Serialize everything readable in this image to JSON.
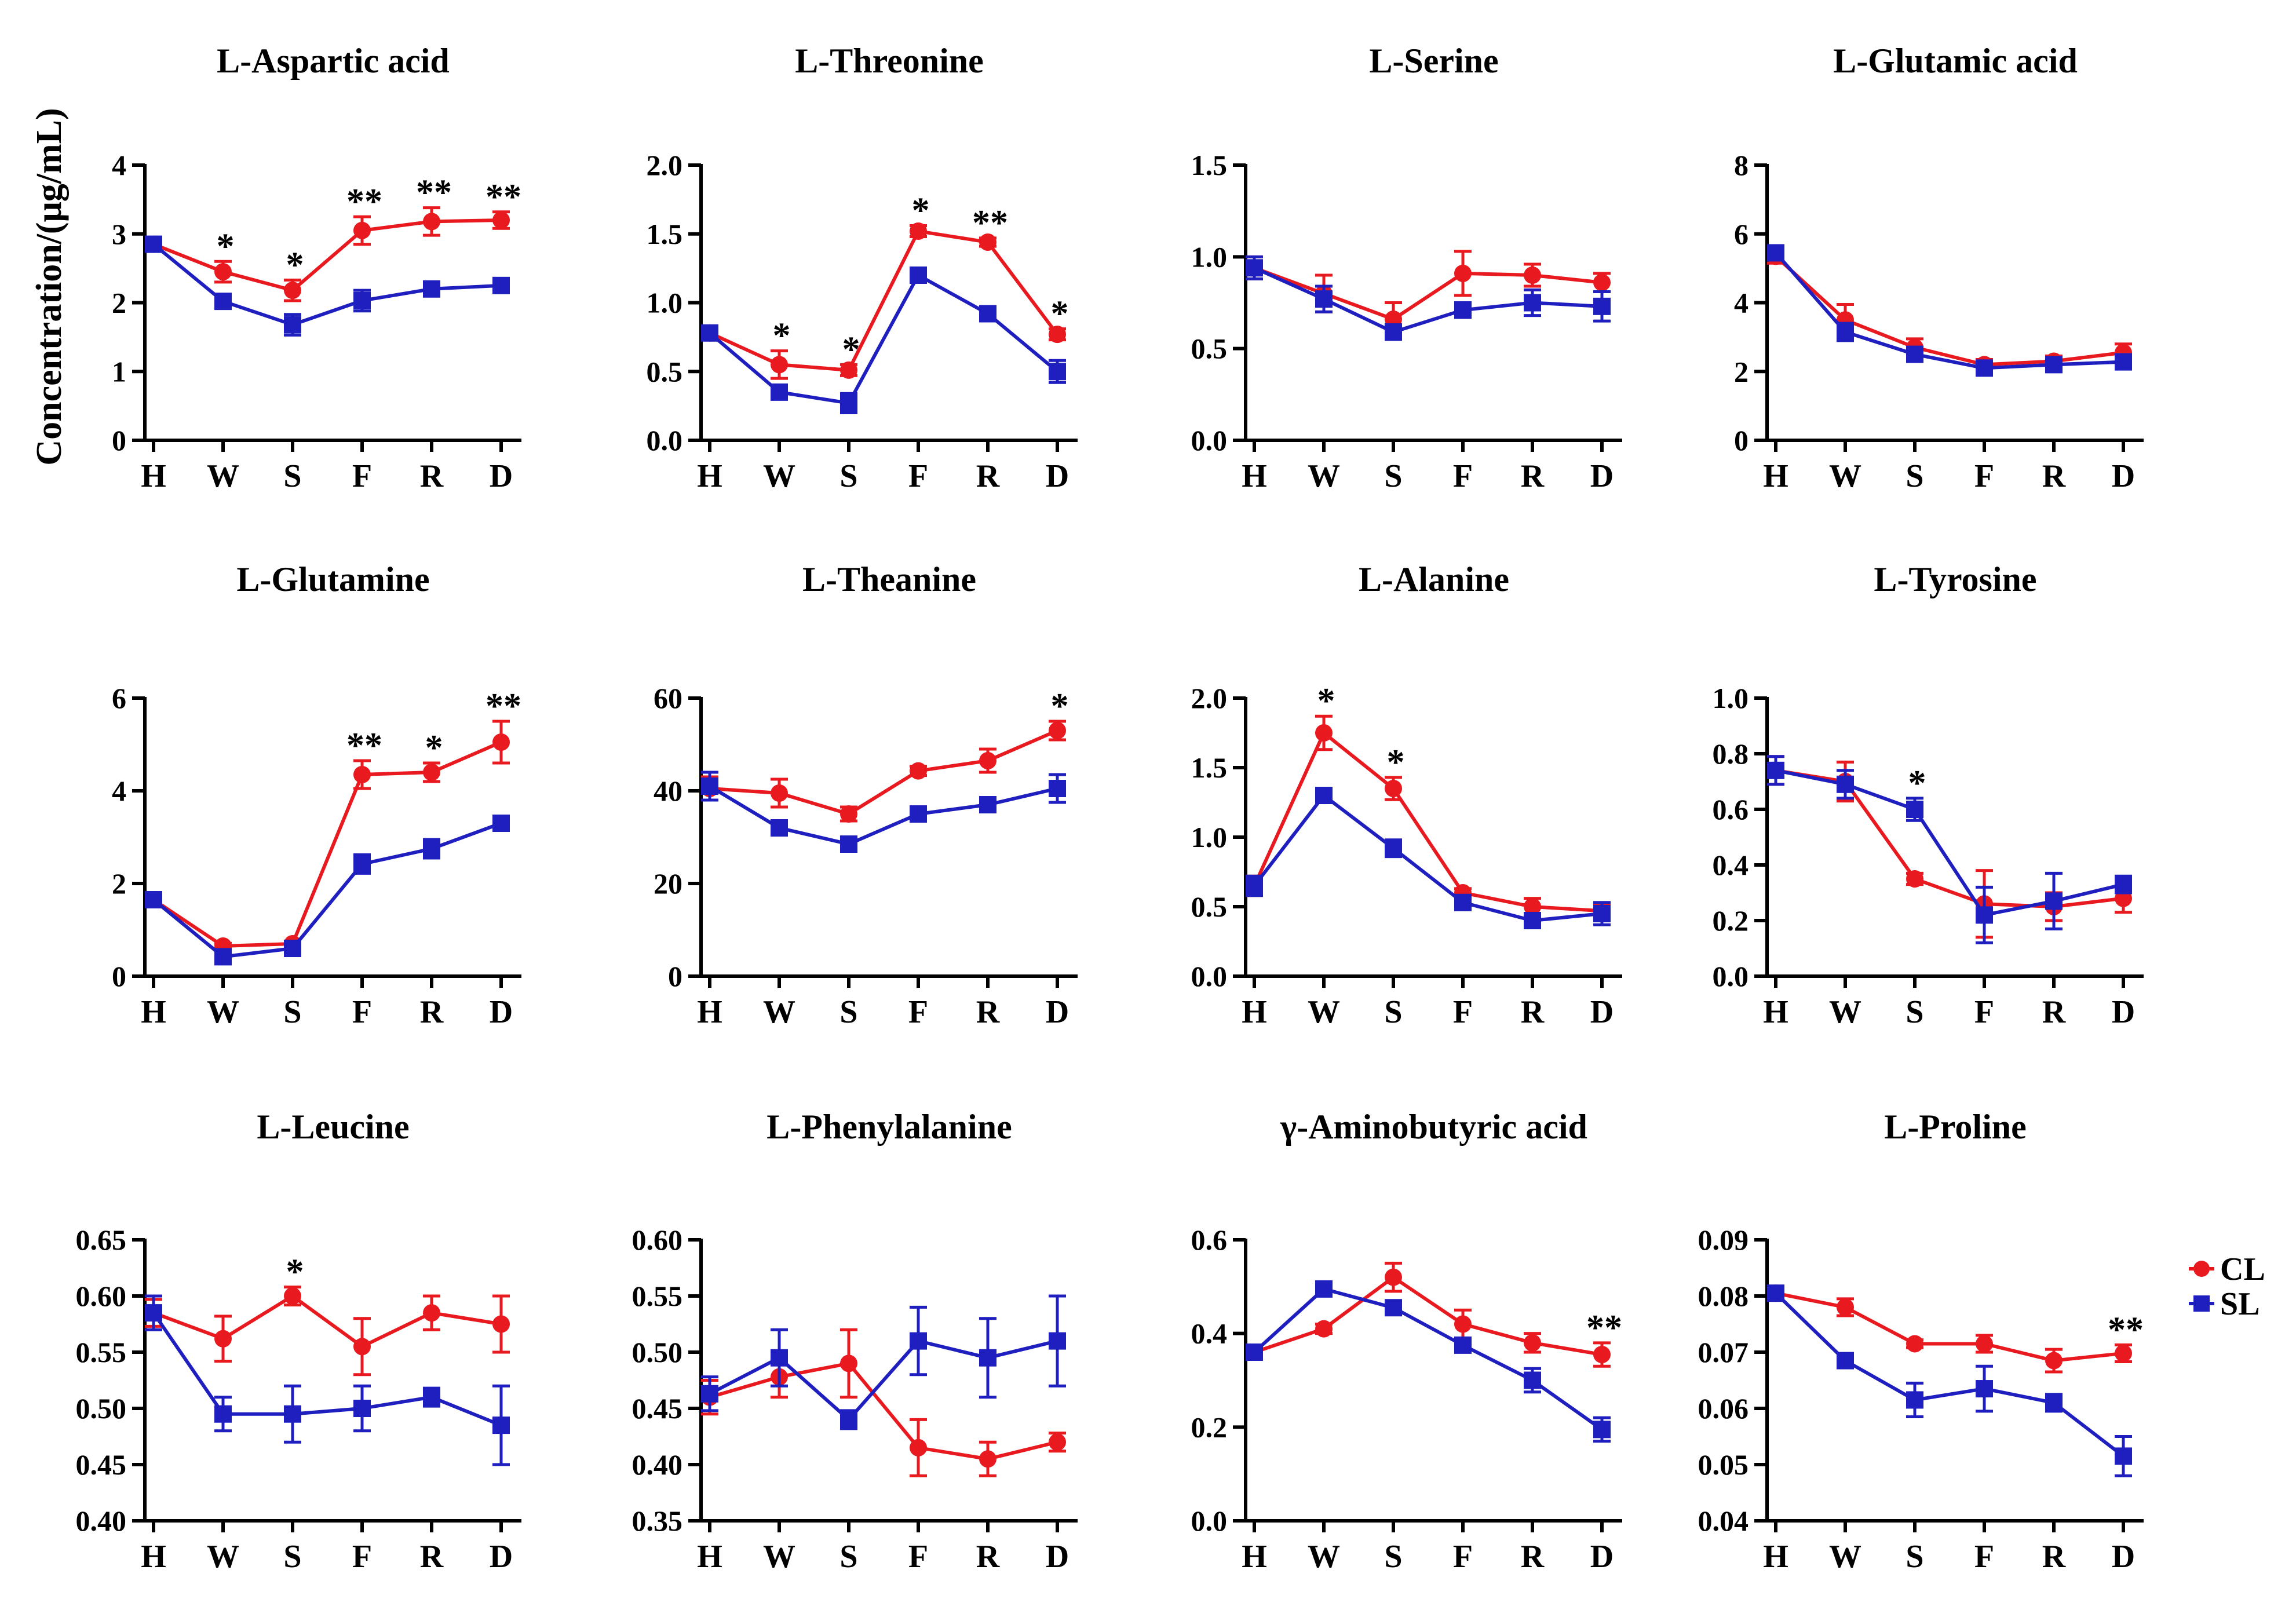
{
  "figure": {
    "ylabel": "Concentration/(μg/mL)",
    "categories": [
      "H",
      "W",
      "S",
      "F",
      "R",
      "D"
    ],
    "legend": [
      {
        "name": "CL",
        "color": "#e8191f",
        "marker": "circle"
      },
      {
        "name": "SL",
        "color": "#1f1fbf",
        "marker": "square"
      }
    ]
  },
  "chart_data": [
    {
      "type": "line",
      "title": "L-Aspartic acid",
      "ylim": [
        0,
        4
      ],
      "yticks": [
        "0",
        "1",
        "2",
        "3",
        "4"
      ],
      "series": [
        {
          "name": "CL",
          "values": [
            2.85,
            2.45,
            2.18,
            3.05,
            3.18,
            3.2
          ],
          "errors": [
            0.08,
            0.15,
            0.15,
            0.2,
            0.2,
            0.12
          ]
        },
        {
          "name": "SL",
          "values": [
            2.85,
            2.02,
            1.68,
            2.03,
            2.2,
            2.25
          ],
          "errors": [
            0.08,
            0.07,
            0.15,
            0.15,
            0.1,
            0.06
          ]
        }
      ],
      "annotations": [
        "",
        "*",
        "*",
        "**",
        "**",
        "**"
      ]
    },
    {
      "type": "line",
      "title": "L-Threonine",
      "ylim": [
        0,
        2
      ],
      "yticks": [
        "0.0",
        "0.5",
        "1.0",
        "1.5",
        "2.0"
      ],
      "series": [
        {
          "name": "CL",
          "values": [
            0.78,
            0.55,
            0.51,
            1.52,
            1.44,
            0.77
          ],
          "errors": [
            0.03,
            0.1,
            0.04,
            0.04,
            0.03,
            0.04
          ]
        },
        {
          "name": "SL",
          "values": [
            0.78,
            0.35,
            0.27,
            1.2,
            0.92,
            0.5
          ],
          "errors": [
            0.03,
            0.04,
            0.07,
            0.03,
            0.03,
            0.08
          ]
        }
      ],
      "annotations": [
        "",
        "*",
        "*",
        "*",
        "**",
        "*"
      ]
    },
    {
      "type": "line",
      "title": "L-Serine",
      "ylim": [
        0,
        1.5
      ],
      "yticks": [
        "0.0",
        "0.5",
        "1.0",
        "1.5"
      ],
      "series": [
        {
          "name": "CL",
          "values": [
            0.94,
            0.8,
            0.66,
            0.91,
            0.9,
            0.86
          ],
          "errors": [
            0.06,
            0.1,
            0.09,
            0.12,
            0.06,
            0.05
          ]
        },
        {
          "name": "SL",
          "values": [
            0.94,
            0.77,
            0.59,
            0.71,
            0.75,
            0.73
          ],
          "errors": [
            0.06,
            0.07,
            0.04,
            0.04,
            0.07,
            0.08
          ]
        }
      ],
      "annotations": [
        "",
        "",
        "",
        "",
        "",
        ""
      ]
    },
    {
      "type": "line",
      "title": "L-Glutamic acid",
      "ylim": [
        0,
        8
      ],
      "yticks": [
        "0",
        "2",
        "4",
        "6",
        "8"
      ],
      "series": [
        {
          "name": "CL",
          "values": [
            5.35,
            3.5,
            2.7,
            2.2,
            2.3,
            2.55
          ],
          "errors": [
            0.2,
            0.45,
            0.25,
            0.15,
            0.15,
            0.25
          ]
        },
        {
          "name": "SL",
          "values": [
            5.45,
            3.15,
            2.5,
            2.1,
            2.2,
            2.28
          ],
          "errors": [
            0.2,
            0.25,
            0.15,
            0.15,
            0.15,
            0.2
          ]
        }
      ],
      "annotations": [
        "",
        "",
        "",
        "",
        "",
        ""
      ]
    },
    {
      "type": "line",
      "title": "L-Glutamine",
      "ylim": [
        0,
        6
      ],
      "yticks": [
        "0",
        "2",
        "4",
        "6"
      ],
      "series": [
        {
          "name": "CL",
          "values": [
            1.65,
            0.65,
            0.7,
            4.35,
            4.4,
            5.05
          ],
          "errors": [
            0.06,
            0.06,
            0.06,
            0.3,
            0.2,
            0.45
          ]
        },
        {
          "name": "SL",
          "values": [
            1.65,
            0.42,
            0.6,
            2.42,
            2.75,
            3.3
          ],
          "errors": [
            0.06,
            0.1,
            0.1,
            0.2,
            0.2,
            0.15
          ]
        }
      ],
      "annotations": [
        "",
        "",
        "",
        "**",
        "*",
        "**"
      ]
    },
    {
      "type": "line",
      "title": "L-Theanine",
      "ylim": [
        0,
        60
      ],
      "yticks": [
        "0",
        "20",
        "40",
        "60"
      ],
      "series": [
        {
          "name": "CL",
          "values": [
            40.5,
            39.5,
            35,
            44.3,
            46.5,
            53
          ],
          "errors": [
            2.5,
            3,
            1.5,
            1,
            2.5,
            2
          ]
        },
        {
          "name": "SL",
          "values": [
            41,
            32,
            28.5,
            35,
            37,
            40.5
          ],
          "errors": [
            3,
            1.5,
            1.5,
            1.5,
            1.5,
            3
          ]
        }
      ],
      "annotations": [
        "",
        "",
        "",
        "",
        "",
        "*"
      ]
    },
    {
      "type": "line",
      "title": "L-Alanine",
      "ylim": [
        0,
        2
      ],
      "yticks": [
        "0.0",
        "0.5",
        "1.0",
        "1.5",
        "2.0"
      ],
      "series": [
        {
          "name": "CL",
          "values": [
            0.65,
            1.75,
            1.35,
            0.6,
            0.5,
            0.47
          ],
          "errors": [
            0.07,
            0.12,
            0.08,
            0.03,
            0.06,
            0.05
          ]
        },
        {
          "name": "SL",
          "values": [
            0.65,
            1.3,
            0.92,
            0.53,
            0.4,
            0.45
          ],
          "errors": [
            0.07,
            0.04,
            0.06,
            0.04,
            0.04,
            0.08
          ]
        }
      ],
      "annotations": [
        "",
        "*",
        "*",
        "",
        "",
        ""
      ]
    },
    {
      "type": "line",
      "title": "L-Tyrosine",
      "ylim": [
        0,
        1
      ],
      "yticks": [
        "0.0",
        "0.2",
        "0.4",
        "0.6",
        "0.8",
        "1.0"
      ],
      "series": [
        {
          "name": "CL",
          "values": [
            0.74,
            0.7,
            0.35,
            0.26,
            0.25,
            0.28
          ],
          "errors": [
            0.05,
            0.07,
            0.02,
            0.12,
            0.05,
            0.05
          ]
        },
        {
          "name": "SL",
          "values": [
            0.74,
            0.69,
            0.6,
            0.22,
            0.27,
            0.33
          ],
          "errors": [
            0.05,
            0.05,
            0.04,
            0.1,
            0.1,
            0.03
          ]
        }
      ],
      "annotations": [
        "",
        "",
        "*",
        "",
        "",
        ""
      ]
    },
    {
      "type": "line",
      "title": "L-Leucine",
      "ylim": [
        0.4,
        0.65
      ],
      "yticks": [
        "0.40",
        "0.45",
        "0.50",
        "0.55",
        "0.60",
        "0.65"
      ],
      "series": [
        {
          "name": "CL",
          "values": [
            0.585,
            0.562,
            0.6,
            0.555,
            0.585,
            0.575
          ],
          "errors": [
            0.012,
            0.02,
            0.008,
            0.025,
            0.015,
            0.025
          ]
        },
        {
          "name": "SL",
          "values": [
            0.585,
            0.495,
            0.495,
            0.5,
            0.51,
            0.485
          ],
          "errors": [
            0.015,
            0.015,
            0.025,
            0.02,
            0.008,
            0.035
          ]
        }
      ],
      "annotations": [
        "",
        "",
        "*",
        "",
        "",
        ""
      ]
    },
    {
      "type": "line",
      "title": "L-Phenylalanine",
      "ylim": [
        0.35,
        0.6
      ],
      "yticks": [
        "0.35",
        "0.40",
        "0.45",
        "0.50",
        "0.55",
        "0.60"
      ],
      "series": [
        {
          "name": "CL",
          "values": [
            0.46,
            0.478,
            0.49,
            0.415,
            0.405,
            0.42
          ],
          "errors": [
            0.015,
            0.018,
            0.03,
            0.025,
            0.015,
            0.008
          ]
        },
        {
          "name": "SL",
          "values": [
            0.463,
            0.495,
            0.44,
            0.51,
            0.495,
            0.51
          ],
          "errors": [
            0.015,
            0.025,
            0.008,
            0.03,
            0.035,
            0.04
          ]
        }
      ],
      "annotations": [
        "",
        "",
        "",
        "",
        "",
        ""
      ]
    },
    {
      "type": "line",
      "title": "γ-Aminobutyric acid",
      "ylim": [
        0,
        0.6
      ],
      "yticks": [
        "0.0",
        "0.2",
        "0.4",
        "0.6"
      ],
      "series": [
        {
          "name": "CL",
          "values": [
            0.36,
            0.41,
            0.52,
            0.42,
            0.38,
            0.355
          ],
          "errors": [
            0.012,
            0.01,
            0.03,
            0.03,
            0.02,
            0.025
          ]
        },
        {
          "name": "SL",
          "values": [
            0.36,
            0.495,
            0.455,
            0.375,
            0.3,
            0.195
          ],
          "errors": [
            0.012,
            0.008,
            0.01,
            0.01,
            0.025,
            0.025
          ]
        }
      ],
      "annotations": [
        "",
        "",
        "",
        "",
        "",
        "**"
      ]
    },
    {
      "type": "line",
      "title": "L-Proline",
      "ylim": [
        0.04,
        0.09
      ],
      "yticks": [
        "0.04",
        "0.05",
        "0.06",
        "0.07",
        "0.08",
        "0.09"
      ],
      "series": [
        {
          "name": "CL",
          "values": [
            0.0805,
            0.078,
            0.0715,
            0.0715,
            0.0685,
            0.0698
          ],
          "errors": [
            0.001,
            0.0015,
            0.0007,
            0.0015,
            0.002,
            0.0015
          ]
        },
        {
          "name": "SL",
          "values": [
            0.0805,
            0.0685,
            0.0615,
            0.0635,
            0.061,
            0.0515
          ],
          "errors": [
            0.001,
            0.001,
            0.003,
            0.004,
            0.0015,
            0.0035
          ]
        }
      ],
      "annotations": [
        "",
        "",
        "",
        "",
        "",
        "**"
      ]
    }
  ]
}
